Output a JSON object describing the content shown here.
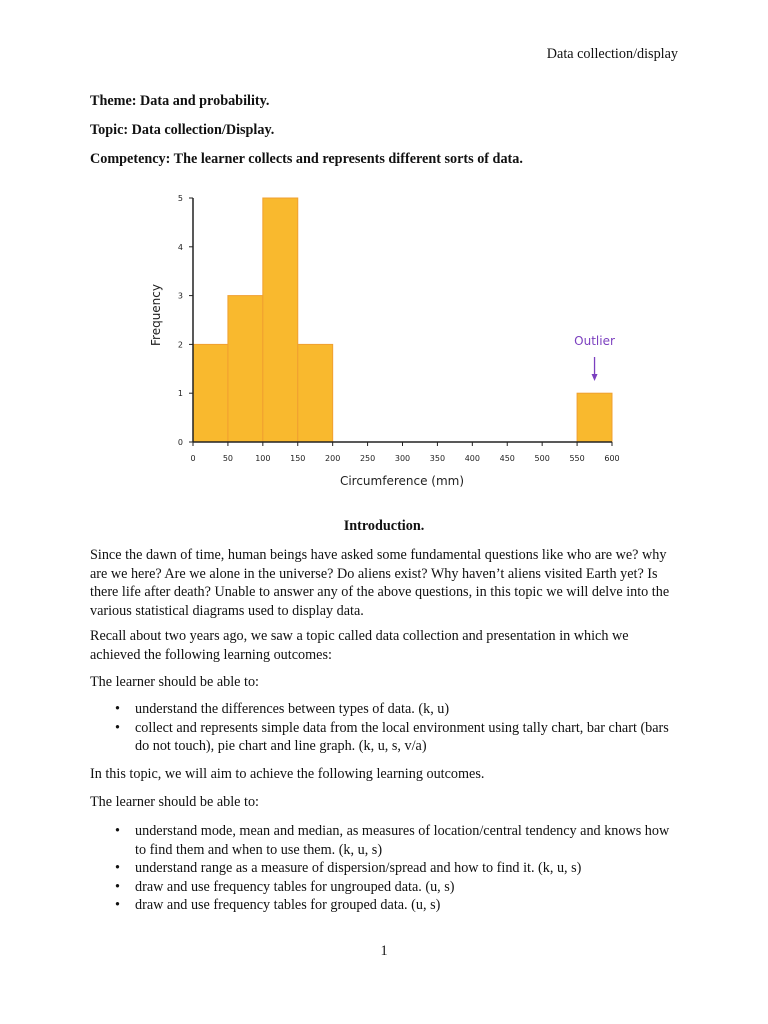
{
  "header": "Data collection/display",
  "theme": "Theme: Data and probability.",
  "topic": "Topic: Data collection/Display.",
  "competency": "Competency: The learner collects and represents different sorts of data.",
  "chart_data": {
    "type": "bar",
    "subtype": "histogram",
    "bins": [
      [
        0,
        50
      ],
      [
        50,
        100
      ],
      [
        100,
        150
      ],
      [
        150,
        200
      ],
      [
        200,
        250
      ],
      [
        250,
        300
      ],
      [
        300,
        350
      ],
      [
        350,
        400
      ],
      [
        400,
        450
      ],
      [
        450,
        500
      ],
      [
        500,
        550
      ],
      [
        550,
        600
      ]
    ],
    "values": [
      2,
      3,
      5,
      2,
      0,
      0,
      0,
      0,
      0,
      0,
      0,
      1
    ],
    "xlabel": "Circumference (mm)",
    "ylabel": "Frequency",
    "xlim": [
      0,
      600
    ],
    "ylim": [
      0,
      5
    ],
    "xticks": [
      "0",
      "50",
      "100",
      "150",
      "200",
      "250",
      "300",
      "350",
      "400",
      "450",
      "500",
      "550",
      "600"
    ],
    "yticks": [
      "0",
      "1",
      "2",
      "3",
      "4",
      "5"
    ],
    "annotation": "Outlier",
    "bar_color": "#F9B92E",
    "annotation_color": "#7B3FBF",
    "grid": false
  },
  "intro_heading": "Introduction.",
  "paragraphs": [
    "Since the dawn of time, human beings have asked some fundamental questions like who are we? why are we here? Are we alone in the universe? Do aliens exist? Why haven’t aliens visited Earth yet? Is there life after death? Unable to answer any of the above questions, in this topic we will delve into the various statistical diagrams used to display data.",
    "Recall about two years ago, we saw a topic called data collection and presentation in which we achieved the following learning outcomes:",
    "The learner should be able to:"
  ],
  "list1": [
    "understand the differences between types of data. (k, u)",
    "collect and represents simple data from the local environment using tally chart, bar chart (bars do not touch), pie chart and line graph. (k, u, s, v/a)"
  ],
  "paragraphs2": [
    "In this topic, we will aim to achieve the following learning outcomes.",
    "The learner should be able to:"
  ],
  "list2": [
    "understand mode, mean and median, as measures of location/central tendency and knows how to find them and when to use them. (k, u, s)",
    "understand range as a measure of dispersion/spread and how to find it. (k, u, s)",
    "draw and use frequency tables for ungrouped data. (u, s)",
    "draw and use frequency tables for grouped data. (u, s)"
  ],
  "page_number": "1"
}
